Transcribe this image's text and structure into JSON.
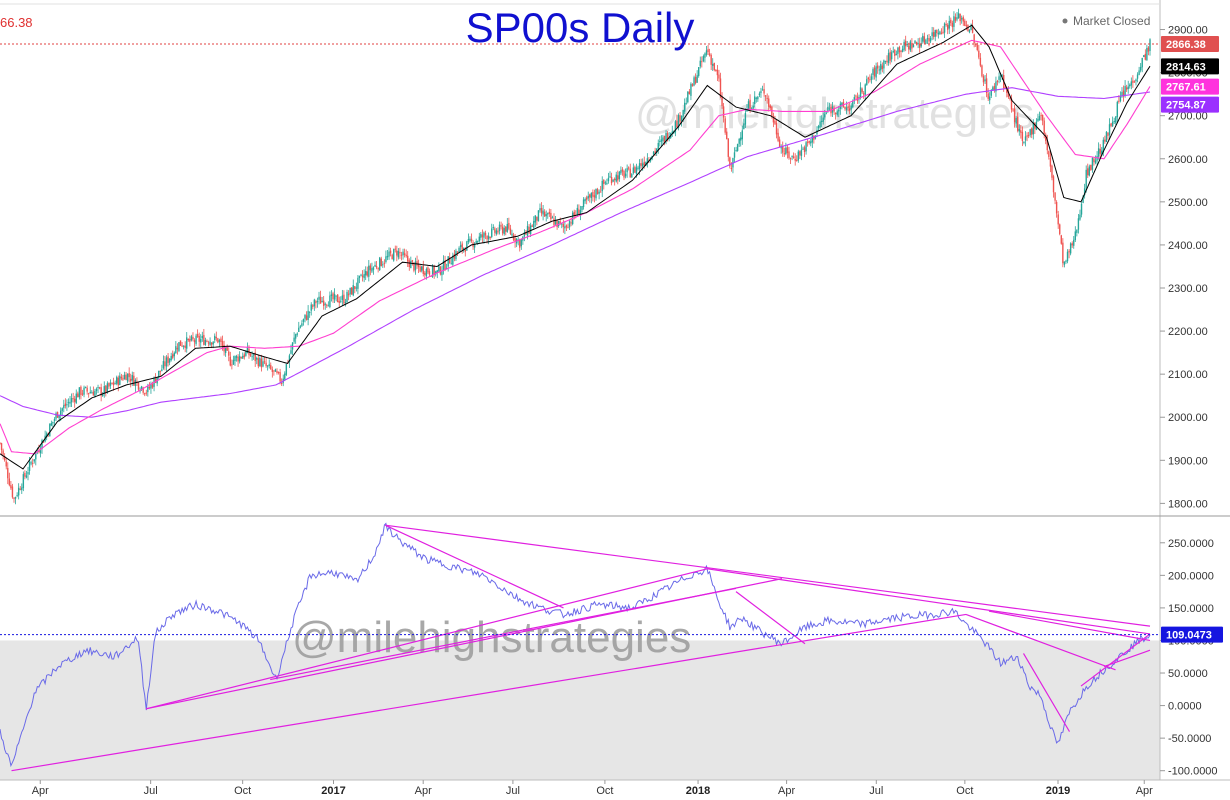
{
  "title": "SP00s Daily",
  "market_status": "Market Closed",
  "watermark": "@milehighstrategies",
  "last_price_left": "66.38",
  "colors": {
    "up": "#26a69a",
    "down": "#ef5350",
    "ma_short": "#000000",
    "ma_mid": "#ff3ed0",
    "ma_long": "#b040ff",
    "indicator": "#6a6ae8",
    "trendline": "#e020e0",
    "price_line": "#e04040",
    "indicator_tag": "#1515e0"
  },
  "price_tags": [
    {
      "label": "2866.38",
      "value": 2866.38,
      "color": "#e05050"
    },
    {
      "label": "2814.63",
      "value": 2814.63,
      "color": "#000000"
    },
    {
      "label": "2767.61",
      "value": 2767.61,
      "color": "#ff33dd"
    },
    {
      "label": "2754.87",
      "value": 2754.87,
      "color": "#9b30ff"
    }
  ],
  "indicator_tag": {
    "label": "109.0473",
    "value": 109.0473
  },
  "chart_data": {
    "type": "candlestick",
    "title": "SP00s Daily",
    "price_axis": {
      "ylim": [
        1780,
        2950
      ],
      "ticks": [
        "1800.00",
        "1900.00",
        "2000.00",
        "2100.00",
        "2200.00",
        "2300.00",
        "2400.00",
        "2500.00",
        "2600.00",
        "2700.00",
        "2800.00",
        "2900.00"
      ]
    },
    "indicator_axis": {
      "ylim": [
        -102,
        285
      ],
      "ticks": [
        "-100.0000",
        "-50.0000",
        "0.0000",
        "50.0000",
        "100.0000",
        "150.0000",
        "200.0000",
        "250.0000"
      ]
    },
    "x_axis": {
      "labels": [
        {
          "text": "Apr",
          "x": 0.035,
          "bold": false
        },
        {
          "text": "Jul",
          "x": 0.131,
          "bold": false
        },
        {
          "text": "Oct",
          "x": 0.211,
          "bold": false
        },
        {
          "text": "2017",
          "x": 0.29,
          "bold": true
        },
        {
          "text": "Apr",
          "x": 0.368,
          "bold": false
        },
        {
          "text": "Jul",
          "x": 0.446,
          "bold": false
        },
        {
          "text": "Oct",
          "x": 0.526,
          "bold": false
        },
        {
          "text": "2018",
          "x": 0.607,
          "bold": true
        },
        {
          "text": "Apr",
          "x": 0.684,
          "bold": false
        },
        {
          "text": "Jul",
          "x": 0.762,
          "bold": false
        },
        {
          "text": "Oct",
          "x": 0.839,
          "bold": false
        },
        {
          "text": "2019",
          "x": 0.92,
          "bold": true
        },
        {
          "text": "Apr",
          "x": 0.995,
          "bold": false
        }
      ]
    },
    "price_keypoints": [
      [
        0.0,
        1940
      ],
      [
        0.012,
        1810
      ],
      [
        0.03,
        1910
      ],
      [
        0.05,
        2010
      ],
      [
        0.07,
        2060
      ],
      [
        0.09,
        2060
      ],
      [
        0.11,
        2100
      ],
      [
        0.128,
        2060
      ],
      [
        0.14,
        2110
      ],
      [
        0.155,
        2170
      ],
      [
        0.175,
        2180
      ],
      [
        0.19,
        2180
      ],
      [
        0.2,
        2130
      ],
      [
        0.215,
        2150
      ],
      [
        0.235,
        2110
      ],
      [
        0.245,
        2085
      ],
      [
        0.258,
        2200
      ],
      [
        0.275,
        2270
      ],
      [
        0.3,
        2275
      ],
      [
        0.32,
        2340
      ],
      [
        0.345,
        2385
      ],
      [
        0.36,
        2350
      ],
      [
        0.38,
        2335
      ],
      [
        0.4,
        2390
      ],
      [
        0.42,
        2420
      ],
      [
        0.44,
        2440
      ],
      [
        0.452,
        2405
      ],
      [
        0.47,
        2475
      ],
      [
        0.49,
        2440
      ],
      [
        0.51,
        2500
      ],
      [
        0.53,
        2555
      ],
      [
        0.55,
        2570
      ],
      [
        0.57,
        2620
      ],
      [
        0.59,
        2690
      ],
      [
        0.615,
        2855
      ],
      [
        0.625,
        2780
      ],
      [
        0.635,
        2570
      ],
      [
        0.65,
        2720
      ],
      [
        0.665,
        2760
      ],
      [
        0.68,
        2620
      ],
      [
        0.69,
        2600
      ],
      [
        0.705,
        2640
      ],
      [
        0.72,
        2715
      ],
      [
        0.74,
        2720
      ],
      [
        0.76,
        2800
      ],
      [
        0.78,
        2855
      ],
      [
        0.8,
        2870
      ],
      [
        0.82,
        2905
      ],
      [
        0.835,
        2930
      ],
      [
        0.845,
        2895
      ],
      [
        0.86,
        2740
      ],
      [
        0.87,
        2800
      ],
      [
        0.89,
        2630
      ],
      [
        0.905,
        2710
      ],
      [
        0.915,
        2550
      ],
      [
        0.925,
        2350
      ],
      [
        0.935,
        2420
      ],
      [
        0.945,
        2570
      ],
      [
        0.96,
        2635
      ],
      [
        0.975,
        2745
      ],
      [
        0.985,
        2780
      ],
      [
        1.0,
        2866
      ]
    ],
    "ma_short_keypoints": [
      [
        0.0,
        1915
      ],
      [
        0.02,
        1880
      ],
      [
        0.05,
        1990
      ],
      [
        0.08,
        2045
      ],
      [
        0.11,
        2075
      ],
      [
        0.14,
        2095
      ],
      [
        0.17,
        2160
      ],
      [
        0.2,
        2165
      ],
      [
        0.23,
        2140
      ],
      [
        0.25,
        2125
      ],
      [
        0.28,
        2235
      ],
      [
        0.31,
        2275
      ],
      [
        0.35,
        2360
      ],
      [
        0.38,
        2350
      ],
      [
        0.41,
        2400
      ],
      [
        0.45,
        2420
      ],
      [
        0.48,
        2455
      ],
      [
        0.51,
        2475
      ],
      [
        0.55,
        2550
      ],
      [
        0.59,
        2675
      ],
      [
        0.615,
        2770
      ],
      [
        0.64,
        2720
      ],
      [
        0.67,
        2700
      ],
      [
        0.7,
        2650
      ],
      [
        0.74,
        2700
      ],
      [
        0.78,
        2820
      ],
      [
        0.82,
        2870
      ],
      [
        0.845,
        2910
      ],
      [
        0.86,
        2860
      ],
      [
        0.88,
        2735
      ],
      [
        0.91,
        2650
      ],
      [
        0.925,
        2510
      ],
      [
        0.94,
        2500
      ],
      [
        0.96,
        2620
      ],
      [
        0.98,
        2730
      ],
      [
        1.0,
        2815
      ]
    ],
    "ma_mid_keypoints": [
      [
        0.0,
        1985
      ],
      [
        0.01,
        1920
      ],
      [
        0.03,
        1915
      ],
      [
        0.06,
        1975
      ],
      [
        0.09,
        2020
      ],
      [
        0.12,
        2060
      ],
      [
        0.15,
        2105
      ],
      [
        0.18,
        2150
      ],
      [
        0.2,
        2165
      ],
      [
        0.23,
        2160
      ],
      [
        0.26,
        2165
      ],
      [
        0.29,
        2195
      ],
      [
        0.33,
        2270
      ],
      [
        0.38,
        2335
      ],
      [
        0.43,
        2390
      ],
      [
        0.47,
        2430
      ],
      [
        0.51,
        2475
      ],
      [
        0.55,
        2530
      ],
      [
        0.6,
        2620
      ],
      [
        0.625,
        2700
      ],
      [
        0.65,
        2715
      ],
      [
        0.68,
        2710
      ],
      [
        0.72,
        2710
      ],
      [
        0.76,
        2755
      ],
      [
        0.8,
        2820
      ],
      [
        0.845,
        2875
      ],
      [
        0.87,
        2860
      ],
      [
        0.89,
        2780
      ],
      [
        0.91,
        2700
      ],
      [
        0.935,
        2610
      ],
      [
        0.96,
        2600
      ],
      [
        0.98,
        2680
      ],
      [
        1.0,
        2768
      ]
    ],
    "ma_long_keypoints": [
      [
        0.0,
        2050
      ],
      [
        0.02,
        2025
      ],
      [
        0.05,
        2005
      ],
      [
        0.08,
        2000
      ],
      [
        0.11,
        2015
      ],
      [
        0.14,
        2035
      ],
      [
        0.17,
        2045
      ],
      [
        0.2,
        2055
      ],
      [
        0.24,
        2075
      ],
      [
        0.3,
        2160
      ],
      [
        0.36,
        2250
      ],
      [
        0.42,
        2330
      ],
      [
        0.48,
        2400
      ],
      [
        0.54,
        2475
      ],
      [
        0.6,
        2545
      ],
      [
        0.65,
        2605
      ],
      [
        0.72,
        2660
      ],
      [
        0.78,
        2710
      ],
      [
        0.84,
        2750
      ],
      [
        0.88,
        2765
      ],
      [
        0.92,
        2745
      ],
      [
        0.96,
        2740
      ],
      [
        1.0,
        2755
      ]
    ],
    "indicator_keypoints": [
      [
        0.0,
        -40
      ],
      [
        0.01,
        -95
      ],
      [
        0.03,
        20
      ],
      [
        0.05,
        60
      ],
      [
        0.075,
        85
      ],
      [
        0.1,
        75
      ],
      [
        0.12,
        105
      ],
      [
        0.127,
        -5
      ],
      [
        0.135,
        110
      ],
      [
        0.15,
        140
      ],
      [
        0.17,
        155
      ],
      [
        0.19,
        145
      ],
      [
        0.21,
        125
      ],
      [
        0.225,
        100
      ],
      [
        0.24,
        40
      ],
      [
        0.255,
        130
      ],
      [
        0.27,
        200
      ],
      [
        0.29,
        205
      ],
      [
        0.31,
        190
      ],
      [
        0.325,
        230
      ],
      [
        0.335,
        275
      ],
      [
        0.35,
        250
      ],
      [
        0.37,
        225
      ],
      [
        0.39,
        215
      ],
      [
        0.42,
        200
      ],
      [
        0.45,
        165
      ],
      [
        0.47,
        150
      ],
      [
        0.49,
        140
      ],
      [
        0.52,
        155
      ],
      [
        0.55,
        150
      ],
      [
        0.575,
        175
      ],
      [
        0.6,
        200
      ],
      [
        0.615,
        210
      ],
      [
        0.625,
        160
      ],
      [
        0.635,
        120
      ],
      [
        0.645,
        135
      ],
      [
        0.66,
        115
      ],
      [
        0.68,
        95
      ],
      [
        0.7,
        120
      ],
      [
        0.72,
        130
      ],
      [
        0.75,
        125
      ],
      [
        0.78,
        135
      ],
      [
        0.81,
        140
      ],
      [
        0.83,
        145
      ],
      [
        0.84,
        125
      ],
      [
        0.855,
        100
      ],
      [
        0.87,
        65
      ],
      [
        0.885,
        75
      ],
      [
        0.895,
        30
      ],
      [
        0.905,
        15
      ],
      [
        0.915,
        -40
      ],
      [
        0.92,
        -60
      ],
      [
        0.93,
        -10
      ],
      [
        0.945,
        30
      ],
      [
        0.96,
        55
      ],
      [
        0.98,
        85
      ],
      [
        0.99,
        100
      ],
      [
        1.0,
        109
      ]
    ],
    "indicator_trendlines": [
      [
        [
          0.335,
          277
        ],
        [
          1.0,
          122
        ]
      ],
      [
        [
          0.335,
          277
        ],
        [
          0.49,
          150
        ]
      ],
      [
        [
          0.127,
          -5
        ],
        [
          0.615,
          210
        ]
      ],
      [
        [
          0.127,
          -5
        ],
        [
          0.68,
          195
        ]
      ],
      [
        [
          0.235,
          40
        ],
        [
          0.64,
          180
        ]
      ],
      [
        [
          0.01,
          -100
        ],
        [
          0.84,
          140
        ]
      ],
      [
        [
          0.615,
          210
        ],
        [
          1.0,
          110
        ]
      ],
      [
        [
          0.64,
          175
        ],
        [
          0.7,
          95
        ]
      ],
      [
        [
          0.84,
          140
        ],
        [
          0.97,
          55
        ]
      ],
      [
        [
          0.89,
          80
        ],
        [
          0.93,
          -40
        ]
      ],
      [
        [
          0.94,
          30
        ],
        [
          1.0,
          110
        ]
      ],
      [
        [
          0.96,
          60
        ],
        [
          1.0,
          85
        ]
      ],
      [
        [
          0.86,
          145
        ],
        [
          1.0,
          100
        ]
      ]
    ]
  }
}
